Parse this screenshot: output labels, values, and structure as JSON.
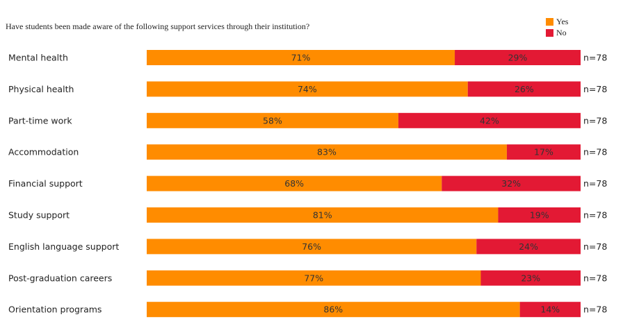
{
  "chart_data": {
    "type": "bar",
    "orientation": "horizontal",
    "stacked": true,
    "title": "Have students been made aware of the following support services through their institution?",
    "categories": [
      "Mental health",
      "Physical health",
      "Part-time work",
      "Accommodation",
      "Financial support",
      "Study support",
      "English language support",
      "Post-graduation careers",
      "Orientation programs"
    ],
    "series": [
      {
        "name": "Yes",
        "color": "#ff8c00",
        "values": [
          71,
          74,
          58,
          83,
          68,
          81,
          76,
          77,
          86
        ],
        "labels": [
          "71%",
          "74%",
          "58%",
          "83%",
          "68%",
          "81%",
          "76%",
          "77%",
          "86%"
        ]
      },
      {
        "name": "No",
        "color": "#e31934",
        "values": [
          29,
          26,
          42,
          17,
          32,
          19,
          24,
          23,
          14
        ],
        "labels": [
          "29%",
          "26%",
          "42%",
          "17%",
          "32%",
          "19%",
          "24%",
          "23%",
          "14%"
        ]
      }
    ],
    "n_labels": [
      "n=78",
      "n=78",
      "n=78",
      "n=78",
      "n=78",
      "n=78",
      "n=78",
      "n=78",
      "n=78"
    ],
    "xlim": [
      0,
      100
    ],
    "legend_position": "top-right",
    "grid": false
  }
}
